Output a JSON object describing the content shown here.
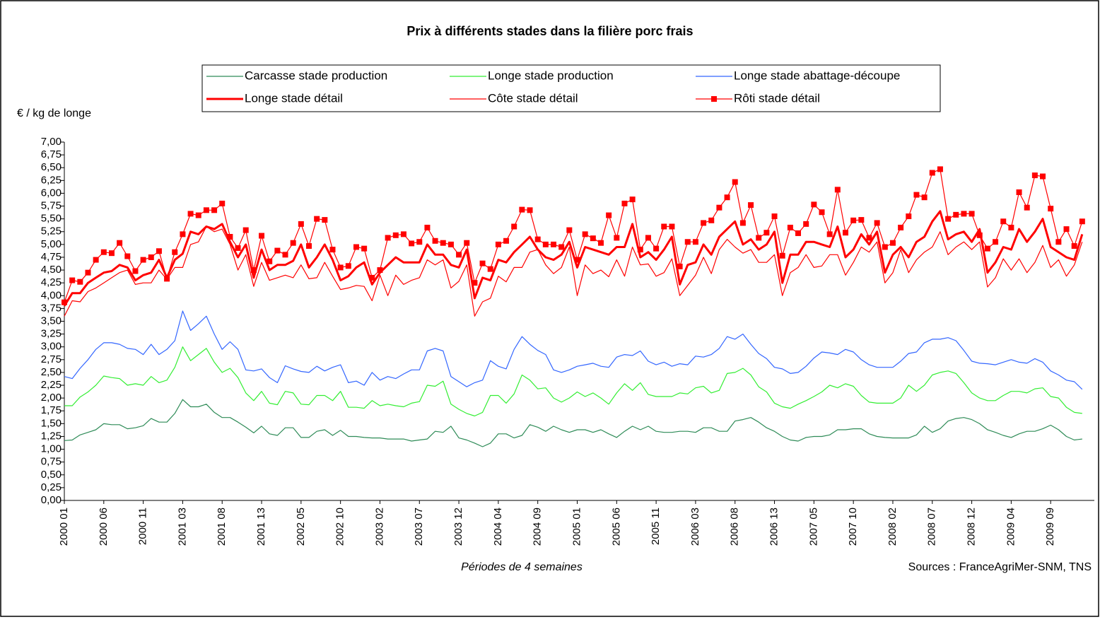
{
  "chart_data": {
    "type": "line",
    "title": "Prix à différents stades dans la filière porc frais",
    "y_label": "€ / kg de longe",
    "x_label": "Périodes de 4 semaines",
    "source": "Sources : FranceAgriMer-SNM, TNS",
    "legend": "top",
    "categories": [
      "2000 01",
      null,
      null,
      null,
      null,
      "2000 06",
      null,
      null,
      null,
      null,
      "2000 11",
      null,
      null,
      null,
      null,
      "2001 03",
      null,
      null,
      null,
      null,
      "2001 08",
      null,
      null,
      null,
      null,
      "2001 13",
      null,
      null,
      null,
      null,
      "2002 05",
      null,
      null,
      null,
      null,
      "2002 10",
      null,
      null,
      null,
      null,
      "2003 02",
      null,
      null,
      null,
      null,
      "2003 07",
      null,
      null,
      null,
      null,
      "2003 12",
      null,
      null,
      null,
      null,
      "2004 04",
      null,
      null,
      null,
      null,
      "2004 09",
      null,
      null,
      null,
      null,
      "2005 01",
      null,
      null,
      null,
      null,
      "2005 06",
      null,
      null,
      null,
      null,
      "2005 11",
      null,
      null,
      null,
      null,
      "2006 03",
      null,
      null,
      null,
      null,
      "2006 08",
      null,
      null,
      null,
      null,
      "2006 13",
      null,
      null,
      null,
      null,
      "2007 05",
      null,
      null,
      null,
      null,
      "2007 10",
      null,
      null,
      null,
      null,
      "2008 02",
      null,
      null,
      null,
      null,
      "2008 07",
      null,
      null,
      null,
      null,
      "2008 12",
      null,
      null,
      null,
      null,
      "2009 04",
      null,
      null,
      null,
      null,
      "2009 09",
      null,
      null,
      null,
      null
    ],
    "ylim": [
      0,
      7
    ],
    "yticks": [
      {
        "value": 0,
        "label": "0,00"
      },
      {
        "value": 0.25,
        "label": "0,25"
      },
      {
        "value": 0.5,
        "label": "0,50"
      },
      {
        "value": 0.75,
        "label": "0,75"
      },
      {
        "value": 1,
        "label": "1,00"
      },
      {
        "value": 1.25,
        "label": "1,25"
      },
      {
        "value": 1.5,
        "label": "1,50"
      },
      {
        "value": 1.75,
        "label": "1,75"
      },
      {
        "value": 2,
        "label": "2,00"
      },
      {
        "value": 2.25,
        "label": "2,25"
      },
      {
        "value": 2.5,
        "label": "2,50"
      },
      {
        "value": 2.75,
        "label": "2,75"
      },
      {
        "value": 3,
        "label": "3,00"
      },
      {
        "value": 3.25,
        "label": "3,25"
      },
      {
        "value": 3.5,
        "label": "3,50"
      },
      {
        "value": 3.75,
        "label": "3,75"
      },
      {
        "value": 4,
        "label": "4,00"
      },
      {
        "value": 4.25,
        "label": "4,25"
      },
      {
        "value": 4.5,
        "label": "4,50"
      },
      {
        "value": 4.75,
        "label": "4,75"
      },
      {
        "value": 5,
        "label": "5,00"
      },
      {
        "value": 5.25,
        "label": "5,25"
      },
      {
        "value": 5.5,
        "label": "5,50"
      },
      {
        "value": 5.75,
        "label": "5,75"
      },
      {
        "value": 6,
        "label": "6,00"
      },
      {
        "value": 6.25,
        "label": "6,25"
      },
      {
        "value": 6.5,
        "label": "6,50"
      },
      {
        "value": 6.75,
        "label": "6,75"
      },
      {
        "value": 7,
        "label": "7,00"
      }
    ],
    "grid": false,
    "series": [
      {
        "name": "Carcasse stade production",
        "color": "#2e8b57",
        "width": 1.2,
        "values": [
          1.17,
          1.18,
          1.28,
          1.33,
          1.38,
          1.5,
          1.48,
          1.48,
          1.4,
          1.42,
          1.46,
          1.6,
          1.53,
          1.53,
          1.7,
          1.97,
          1.83,
          1.83,
          1.88,
          1.72,
          1.62,
          1.62,
          1.53,
          1.43,
          1.32,
          1.45,
          1.3,
          1.27,
          1.42,
          1.42,
          1.23,
          1.23,
          1.35,
          1.38,
          1.27,
          1.37,
          1.25,
          1.25,
          1.23,
          1.22,
          1.22,
          1.2,
          1.2,
          1.2,
          1.16,
          1.18,
          1.2,
          1.35,
          1.33,
          1.45,
          1.22,
          1.18,
          1.12,
          1.05,
          1.12,
          1.3,
          1.3,
          1.22,
          1.27,
          1.48,
          1.43,
          1.35,
          1.45,
          1.38,
          1.33,
          1.38,
          1.38,
          1.33,
          1.38,
          1.3,
          1.23,
          1.35,
          1.45,
          1.38,
          1.45,
          1.35,
          1.33,
          1.33,
          1.35,
          1.35,
          1.33,
          1.42,
          1.42,
          1.35,
          1.35,
          1.55,
          1.58,
          1.62,
          1.53,
          1.42,
          1.35,
          1.25,
          1.18,
          1.16,
          1.23,
          1.25,
          1.25,
          1.28,
          1.38,
          1.38,
          1.4,
          1.4,
          1.3,
          1.25,
          1.23,
          1.22,
          1.22,
          1.22,
          1.28,
          1.45,
          1.33,
          1.4,
          1.55,
          1.6,
          1.62,
          1.58,
          1.5,
          1.38,
          1.33,
          1.27,
          1.23,
          1.3,
          1.35,
          1.35,
          1.4,
          1.47,
          1.38,
          1.25,
          1.18,
          1.2
        ]
      },
      {
        "name": "Longe stade production",
        "color": "#33ee33",
        "width": 1.2,
        "values": [
          1.85,
          1.85,
          2.02,
          2.12,
          2.25,
          2.43,
          2.4,
          2.38,
          2.25,
          2.28,
          2.25,
          2.42,
          2.3,
          2.35,
          2.6,
          3.0,
          2.73,
          2.85,
          2.97,
          2.7,
          2.5,
          2.58,
          2.4,
          2.1,
          1.95,
          2.13,
          1.9,
          1.87,
          2.13,
          2.1,
          1.88,
          1.87,
          2.05,
          2.05,
          1.95,
          2.13,
          1.82,
          1.82,
          1.8,
          1.95,
          1.85,
          1.88,
          1.85,
          1.83,
          1.9,
          1.93,
          2.25,
          2.23,
          2.33,
          1.88,
          1.78,
          1.7,
          1.65,
          1.72,
          2.05,
          2.05,
          1.9,
          2.08,
          2.45,
          2.35,
          2.18,
          2.2,
          2.0,
          1.92,
          2.0,
          2.12,
          2.03,
          2.1,
          2.0,
          1.88,
          2.1,
          2.28,
          2.15,
          2.3,
          2.07,
          2.03,
          2.03,
          2.03,
          2.1,
          2.08,
          2.2,
          2.23,
          2.1,
          2.15,
          2.48,
          2.5,
          2.58,
          2.45,
          2.22,
          2.12,
          1.9,
          1.83,
          1.8,
          1.88,
          1.95,
          2.03,
          2.12,
          2.25,
          2.2,
          2.28,
          2.23,
          2.05,
          1.92,
          1.9,
          1.9,
          1.9,
          2.0,
          2.25,
          2.13,
          2.25,
          2.45,
          2.5,
          2.53,
          2.48,
          2.3,
          2.1,
          2.0,
          1.95,
          1.95,
          2.05,
          2.13,
          2.13,
          2.1,
          2.18,
          2.2,
          2.03,
          2.0,
          1.82,
          1.72,
          1.7
        ]
      },
      {
        "name": "Longe stade abattage-découpe",
        "color": "#3366ff",
        "width": 1.2,
        "values": [
          2.42,
          2.38,
          2.58,
          2.75,
          2.95,
          3.08,
          3.08,
          3.05,
          2.97,
          2.95,
          2.85,
          3.05,
          2.85,
          2.95,
          3.12,
          3.7,
          3.32,
          3.45,
          3.6,
          3.25,
          2.95,
          3.1,
          2.95,
          2.55,
          2.53,
          2.57,
          2.4,
          2.3,
          2.63,
          2.57,
          2.52,
          2.5,
          2.62,
          2.53,
          2.6,
          2.65,
          2.3,
          2.33,
          2.25,
          2.5,
          2.35,
          2.42,
          2.38,
          2.47,
          2.55,
          2.55,
          2.92,
          2.97,
          2.92,
          2.42,
          2.32,
          2.22,
          2.3,
          2.35,
          2.73,
          2.62,
          2.57,
          2.95,
          3.2,
          3.05,
          2.93,
          2.85,
          2.55,
          2.5,
          2.55,
          2.62,
          2.65,
          2.68,
          2.62,
          2.6,
          2.8,
          2.85,
          2.83,
          2.92,
          2.72,
          2.65,
          2.7,
          2.62,
          2.67,
          2.65,
          2.82,
          2.8,
          2.85,
          2.97,
          3.2,
          3.15,
          3.25,
          3.05,
          2.87,
          2.77,
          2.6,
          2.57,
          2.48,
          2.5,
          2.62,
          2.78,
          2.9,
          2.88,
          2.85,
          2.95,
          2.9,
          2.75,
          2.65,
          2.6,
          2.6,
          2.6,
          2.72,
          2.87,
          2.9,
          3.08,
          3.15,
          3.15,
          3.18,
          3.12,
          2.93,
          2.72,
          2.68,
          2.67,
          2.65,
          2.7,
          2.75,
          2.7,
          2.68,
          2.77,
          2.7,
          2.53,
          2.45,
          2.35,
          2.32,
          2.17
        ]
      },
      {
        "name": "Longe stade détail",
        "color": "#ff0000",
        "width": 3,
        "values": [
          3.8,
          4.05,
          4.05,
          4.25,
          4.35,
          4.45,
          4.48,
          4.6,
          4.55,
          4.3,
          4.4,
          4.45,
          4.7,
          4.35,
          4.7,
          4.82,
          5.25,
          5.2,
          5.35,
          5.3,
          5.4,
          5.05,
          4.75,
          5.0,
          4.35,
          4.9,
          4.5,
          4.6,
          4.6,
          4.68,
          5.0,
          4.55,
          4.75,
          5.0,
          4.7,
          4.3,
          4.38,
          4.55,
          4.65,
          4.22,
          4.45,
          4.6,
          4.75,
          4.65,
          4.65,
          4.65,
          5.0,
          4.8,
          4.8,
          4.6,
          4.55,
          4.9,
          3.95,
          4.35,
          4.3,
          4.7,
          4.65,
          4.85,
          5.0,
          5.15,
          4.9,
          4.75,
          4.7,
          4.8,
          5.05,
          4.55,
          4.95,
          4.9,
          4.85,
          4.8,
          4.95,
          4.95,
          5.4,
          4.75,
          4.85,
          4.7,
          4.9,
          5.15,
          4.22,
          4.6,
          4.65,
          5.0,
          4.8,
          5.15,
          5.3,
          5.45,
          5.0,
          5.1,
          4.9,
          5.0,
          5.25,
          4.25,
          4.8,
          4.8,
          5.05,
          5.05,
          5.0,
          4.95,
          5.35,
          4.75,
          4.9,
          5.2,
          5.0,
          5.25,
          4.45,
          4.8,
          4.95,
          4.75,
          5.05,
          5.15,
          5.45,
          5.65,
          5.1,
          5.2,
          5.25,
          5.05,
          5.3,
          4.45,
          4.65,
          4.95,
          4.9,
          5.3,
          5.05,
          5.25,
          5.5,
          4.95,
          4.85,
          4.75,
          4.7,
          5.2
        ]
      },
      {
        "name": "Côte stade détail",
        "color": "#ff0000",
        "width": 1.2,
        "values": [
          3.6,
          3.9,
          3.88,
          4.08,
          4.15,
          4.25,
          4.35,
          4.45,
          4.5,
          4.22,
          4.25,
          4.25,
          4.5,
          4.32,
          4.55,
          4.55,
          5.0,
          5.05,
          5.35,
          5.25,
          5.3,
          5.0,
          4.5,
          4.8,
          4.18,
          4.65,
          4.3,
          4.35,
          4.4,
          4.35,
          4.6,
          4.33,
          4.35,
          4.65,
          4.38,
          4.12,
          4.15,
          4.2,
          4.18,
          3.9,
          4.4,
          4.0,
          4.4,
          4.22,
          4.3,
          4.35,
          4.7,
          4.6,
          4.7,
          4.15,
          4.28,
          4.6,
          3.6,
          3.88,
          3.95,
          4.38,
          4.27,
          4.55,
          4.55,
          4.85,
          4.9,
          4.6,
          4.43,
          4.55,
          4.95,
          4.0,
          4.6,
          4.43,
          4.5,
          4.37,
          4.7,
          4.38,
          4.95,
          4.6,
          4.62,
          4.38,
          4.45,
          4.72,
          4.0,
          4.2,
          4.4,
          4.75,
          4.43,
          4.9,
          5.1,
          4.95,
          4.83,
          4.9,
          4.65,
          4.65,
          4.8,
          4.0,
          4.45,
          4.55,
          4.8,
          4.55,
          4.58,
          4.8,
          4.8,
          4.4,
          4.65,
          4.95,
          4.85,
          5.05,
          4.25,
          4.45,
          4.9,
          4.45,
          4.7,
          4.85,
          4.95,
          5.25,
          4.8,
          4.95,
          5.05,
          4.9,
          5.05,
          4.17,
          4.35,
          4.72,
          4.5,
          4.72,
          4.45,
          4.65,
          4.98,
          4.55,
          4.7,
          4.38,
          4.6,
          5.05
        ]
      },
      {
        "name": "Rôti stade détail",
        "color": "#ff0000",
        "width": 1.2,
        "marker": "square",
        "values": [
          3.87,
          4.3,
          4.27,
          4.45,
          4.7,
          4.85,
          4.83,
          5.03,
          4.77,
          4.48,
          4.7,
          4.75,
          4.87,
          4.33,
          4.85,
          5.2,
          5.6,
          5.57,
          5.67,
          5.67,
          5.8,
          5.15,
          4.93,
          5.28,
          4.5,
          5.17,
          4.67,
          4.88,
          4.8,
          5.03,
          5.4,
          4.97,
          5.5,
          5.48,
          4.9,
          4.55,
          4.58,
          4.95,
          4.92,
          4.35,
          4.5,
          5.13,
          5.18,
          5.2,
          5.02,
          5.05,
          5.33,
          5.07,
          5.03,
          5.0,
          4.8,
          5.03,
          4.25,
          4.63,
          4.52,
          5.0,
          5.07,
          5.35,
          5.68,
          5.67,
          5.1,
          5.0,
          5.0,
          4.95,
          5.28,
          4.7,
          5.2,
          5.12,
          5.03,
          5.57,
          5.13,
          5.8,
          5.88,
          4.9,
          5.13,
          4.92,
          5.35,
          5.35,
          4.57,
          5.05,
          5.05,
          5.42,
          5.47,
          5.72,
          5.92,
          6.22,
          5.42,
          5.77,
          5.13,
          5.23,
          5.55,
          4.78,
          5.33,
          5.22,
          5.4,
          5.78,
          5.63,
          5.2,
          6.07,
          5.23,
          5.47,
          5.48,
          5.13,
          5.42,
          4.95,
          5.03,
          5.33,
          5.55,
          5.97,
          5.92,
          6.4,
          6.47,
          5.5,
          5.58,
          5.6,
          5.6,
          5.18,
          4.92,
          5.05,
          5.45,
          5.33,
          6.02,
          5.72,
          6.35,
          6.33,
          5.7,
          5.05,
          5.3,
          4.97,
          5.45
        ]
      }
    ]
  }
}
